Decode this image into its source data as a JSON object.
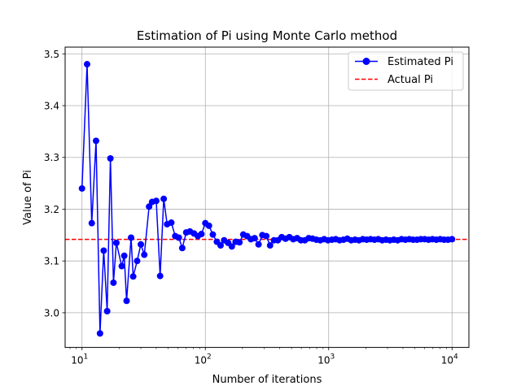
{
  "chart_data": {
    "type": "line",
    "title": "Estimation of Pi using Monte Carlo method",
    "xlabel": "Number of iterations",
    "ylabel": "Value of Pi",
    "xscale": "log",
    "xlim": [
      7.3,
      13700
    ],
    "ylim": [
      2.933,
      3.513
    ],
    "grid": true,
    "legend_position": "top-right",
    "x_ticks": [
      {
        "value": 10,
        "base": "10",
        "exp": "1"
      },
      {
        "value": 100,
        "base": "10",
        "exp": "2"
      },
      {
        "value": 1000,
        "base": "10",
        "exp": "3"
      },
      {
        "value": 10000,
        "base": "10",
        "exp": "4"
      }
    ],
    "y_ticks": [
      {
        "value": 3.0,
        "label": "3.0"
      },
      {
        "value": 3.1,
        "label": "3.1"
      },
      {
        "value": 3.2,
        "label": "3.2"
      },
      {
        "value": 3.3,
        "label": "3.3"
      },
      {
        "value": 3.4,
        "label": "3.4"
      },
      {
        "value": 3.5,
        "label": "3.5"
      }
    ],
    "series": [
      {
        "name": "Estimated Pi",
        "color": "#0000ff",
        "marker": "circle",
        "x": [
          10,
          11,
          12,
          13,
          14,
          15,
          16,
          17,
          18,
          19,
          21,
          22,
          23,
          25,
          26,
          28,
          30,
          32,
          35,
          37,
          40,
          43,
          46,
          49,
          53,
          57,
          61,
          65,
          70,
          75,
          81,
          87,
          93,
          100,
          107,
          115,
          124,
          133,
          142,
          153,
          164,
          176,
          189,
          203,
          218,
          234,
          251,
          270,
          290,
          312,
          335,
          360,
          387,
          416,
          447,
          480,
          516,
          555,
          596,
          641,
          689,
          740,
          795,
          855,
          919,
          988,
          1062,
          1141,
          1226,
          1318,
          1417,
          1523,
          1637,
          1760,
          1891,
          2033,
          2185,
          2349,
          2525,
          2714,
          2917,
          3136,
          3371,
          3623,
          3894,
          4186,
          4500,
          4837,
          5199,
          5589,
          6007,
          6457,
          6941,
          7461,
          8020,
          8620,
          9266,
          10000
        ],
        "y": [
          3.24,
          3.48,
          3.173,
          3.332,
          2.96,
          3.12,
          3.003,
          3.298,
          3.058,
          3.135,
          3.09,
          3.11,
          3.023,
          3.145,
          3.07,
          3.1,
          3.132,
          3.112,
          3.205,
          3.214,
          3.216,
          3.071,
          3.22,
          3.171,
          3.174,
          3.148,
          3.145,
          3.125,
          3.155,
          3.157,
          3.153,
          3.148,
          3.152,
          3.173,
          3.168,
          3.151,
          3.137,
          3.13,
          3.14,
          3.135,
          3.128,
          3.137,
          3.136,
          3.151,
          3.148,
          3.142,
          3.144,
          3.132,
          3.15,
          3.148,
          3.13,
          3.14,
          3.14,
          3.146,
          3.143,
          3.146,
          3.142,
          3.144,
          3.14,
          3.14,
          3.144,
          3.143,
          3.141,
          3.14,
          3.142,
          3.14,
          3.141,
          3.142,
          3.14,
          3.141,
          3.143,
          3.14,
          3.141,
          3.14,
          3.142,
          3.141,
          3.142,
          3.141,
          3.142,
          3.14,
          3.141,
          3.14,
          3.141,
          3.14,
          3.142,
          3.141,
          3.142,
          3.141,
          3.141,
          3.142,
          3.142,
          3.141,
          3.142,
          3.141,
          3.142,
          3.141,
          3.141,
          3.142
        ]
      },
      {
        "name": "Actual Pi",
        "color": "#ff0000",
        "style": "dashed",
        "value": 3.14159
      }
    ]
  }
}
